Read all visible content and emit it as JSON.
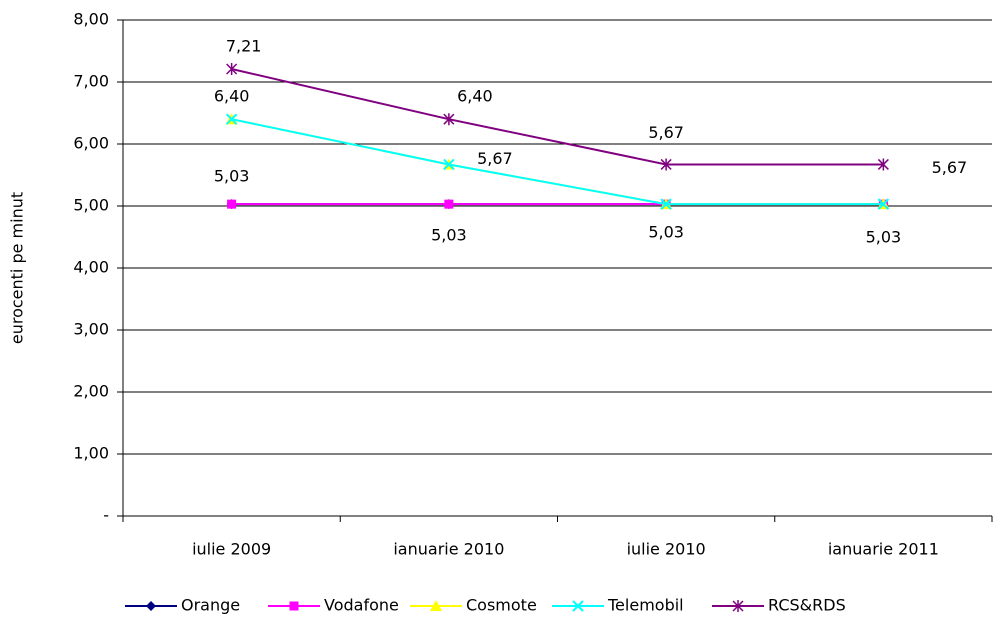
{
  "chart_data": {
    "type": "line",
    "y_label": "eurocenti pe minut",
    "categories": [
      "iulie 2009",
      "ianuarie 2010",
      "iulie 2010",
      "ianuarie 2011"
    ],
    "series": [
      {
        "name": "Orange",
        "color": "#000080",
        "marker": "diamond",
        "values": [
          5.03,
          5.03,
          5.03,
          5.03
        ],
        "value_labels": [
          "5,03",
          "5,03",
          "5,03",
          "5,03"
        ]
      },
      {
        "name": "Vodafone",
        "color": "#ff00ff",
        "marker": "square",
        "values": [
          5.03,
          5.03,
          5.03,
          5.03
        ]
      },
      {
        "name": "Cosmote",
        "color": "#ffff00",
        "marker": "triangle",
        "values": [
          6.4,
          5.67,
          5.03,
          5.03
        ]
      },
      {
        "name": "Telemobil",
        "color": "#00ffff",
        "marker": "x",
        "values": [
          6.4,
          5.67,
          5.03,
          5.03
        ],
        "value_labels": [
          "6,40",
          "5,67",
          null,
          null
        ]
      },
      {
        "name": "RCS&RDS",
        "color": "#800080",
        "marker": "star",
        "values": [
          7.21,
          6.4,
          5.67,
          5.67
        ],
        "value_labels": [
          "7,21",
          "6,40",
          "5,67",
          "5,67"
        ]
      }
    ],
    "ylim": [
      0,
      8
    ],
    "yticks": [
      {
        "value": 0,
        "label": "-"
      },
      {
        "value": 1,
        "label": "1,00"
      },
      {
        "value": 2,
        "label": "2,00"
      },
      {
        "value": 3,
        "label": "3,00"
      },
      {
        "value": 4,
        "label": "4,00"
      },
      {
        "value": 5,
        "label": "5,00"
      },
      {
        "value": 6,
        "label": "6,00"
      },
      {
        "value": 7,
        "label": "7,00"
      },
      {
        "value": 8,
        "label": "8,00"
      }
    ],
    "grid": true,
    "legend": "bottom"
  }
}
